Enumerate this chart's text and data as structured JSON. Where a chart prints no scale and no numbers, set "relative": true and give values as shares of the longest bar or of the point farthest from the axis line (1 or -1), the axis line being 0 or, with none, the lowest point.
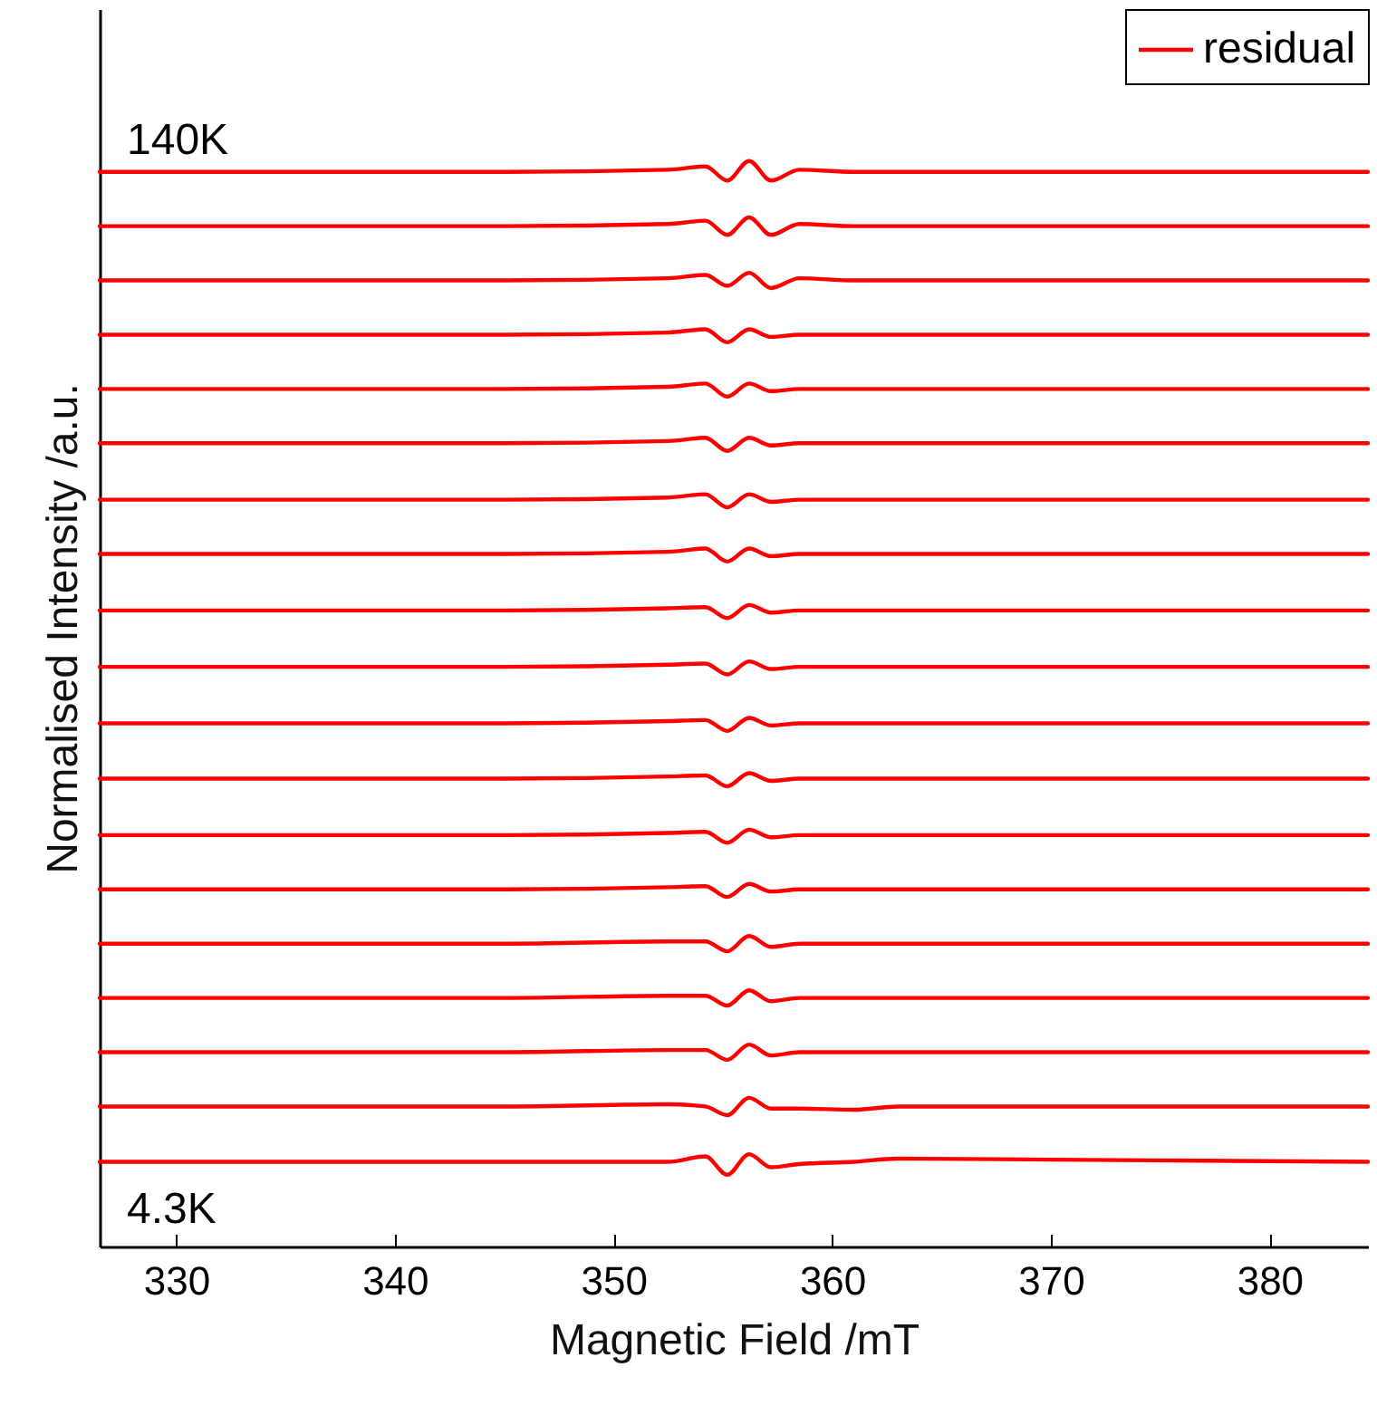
{
  "chart_data": {
    "type": "line",
    "relative": true,
    "xlabel": "Magnetic Field /mT",
    "ylabel": "Normalised Intensity /a.u.",
    "annotations": [
      "140K",
      "4.3K"
    ],
    "legend": "top right",
    "tick_labels": "x",
    "grid": false,
    "marker": "none",
    "line_style": "solid",
    "xlim": [
      326.5,
      384.5
    ],
    "xticks": [
      330,
      340,
      350,
      360,
      370,
      380
    ],
    "x": [
      326.5,
      345,
      352.5,
      354.2,
      355.2,
      356.2,
      357.2,
      358.5,
      361,
      363,
      370,
      384.5
    ],
    "series": [
      {
        "name": "residual",
        "color": "#ff0000",
        "values": [
          0.99,
          0.99,
          0.992,
          0.995,
          0.982,
          1.0,
          0.982,
          0.992,
          0.99,
          0.99,
          0.99,
          0.99
        ]
      },
      {
        "color": "#ff0000",
        "values": [
          0.94,
          0.94,
          0.942,
          0.945,
          0.932,
          0.948,
          0.932,
          0.942,
          0.94,
          0.94,
          0.94,
          0.94
        ]
      },
      {
        "color": "#ff0000",
        "values": [
          0.89,
          0.89,
          0.892,
          0.895,
          0.885,
          0.897,
          0.883,
          0.892,
          0.89,
          0.89,
          0.89,
          0.89
        ]
      },
      {
        "color": "#ff0000",
        "values": [
          0.84,
          0.84,
          0.842,
          0.845,
          0.833,
          0.845,
          0.838,
          0.84,
          0.84,
          0.84,
          0.84,
          0.84
        ]
      },
      {
        "color": "#ff0000",
        "values": [
          0.79,
          0.79,
          0.792,
          0.795,
          0.783,
          0.795,
          0.788,
          0.79,
          0.79,
          0.79,
          0.79,
          0.79
        ]
      },
      {
        "color": "#ff0000",
        "values": [
          0.74,
          0.74,
          0.742,
          0.745,
          0.733,
          0.745,
          0.738,
          0.74,
          0.74,
          0.74,
          0.74,
          0.74
        ]
      },
      {
        "color": "#ff0000",
        "values": [
          0.688,
          0.688,
          0.69,
          0.693,
          0.681,
          0.693,
          0.686,
          0.688,
          0.688,
          0.688,
          0.688,
          0.688
        ]
      },
      {
        "color": "#ff0000",
        "values": [
          0.638,
          0.638,
          0.64,
          0.643,
          0.631,
          0.643,
          0.636,
          0.638,
          0.638,
          0.638,
          0.638,
          0.638
        ]
      },
      {
        "color": "#ff0000",
        "values": [
          0.586,
          0.586,
          0.588,
          0.589,
          0.579,
          0.591,
          0.584,
          0.586,
          0.586,
          0.586,
          0.586,
          0.586
        ]
      },
      {
        "color": "#ff0000",
        "values": [
          0.534,
          0.534,
          0.536,
          0.537,
          0.527,
          0.539,
          0.532,
          0.534,
          0.534,
          0.534,
          0.534,
          0.534
        ]
      },
      {
        "color": "#ff0000",
        "values": [
          0.482,
          0.482,
          0.484,
          0.485,
          0.475,
          0.487,
          0.48,
          0.482,
          0.482,
          0.482,
          0.482,
          0.482
        ]
      },
      {
        "color": "#ff0000",
        "values": [
          0.431,
          0.431,
          0.433,
          0.434,
          0.424,
          0.436,
          0.429,
          0.431,
          0.431,
          0.431,
          0.431,
          0.431
        ]
      },
      {
        "color": "#ff0000",
        "values": [
          0.379,
          0.379,
          0.381,
          0.382,
          0.372,
          0.384,
          0.377,
          0.379,
          0.379,
          0.379,
          0.379,
          0.379
        ]
      },
      {
        "color": "#ff0000",
        "values": [
          0.329,
          0.329,
          0.331,
          0.332,
          0.322,
          0.334,
          0.327,
          0.329,
          0.329,
          0.329,
          0.329,
          0.329
        ]
      },
      {
        "color": "#ff0000",
        "values": [
          0.279,
          0.279,
          0.281,
          0.281,
          0.272,
          0.286,
          0.276,
          0.279,
          0.279,
          0.279,
          0.279,
          0.279
        ]
      },
      {
        "color": "#ff0000",
        "values": [
          0.229,
          0.229,
          0.231,
          0.231,
          0.222,
          0.236,
          0.226,
          0.229,
          0.229,
          0.229,
          0.229,
          0.229
        ]
      },
      {
        "color": "#ff0000",
        "values": [
          0.179,
          0.179,
          0.181,
          0.181,
          0.172,
          0.186,
          0.176,
          0.179,
          0.179,
          0.179,
          0.179,
          0.179
        ]
      },
      {
        "color": "#ff0000",
        "values": [
          0.129,
          0.129,
          0.131,
          0.129,
          0.121,
          0.137,
          0.127,
          0.127,
          0.126,
          0.129,
          0.129,
          0.129
        ]
      },
      {
        "color": "#ff0000",
        "values": [
          0.078,
          0.078,
          0.078,
          0.083,
          0.066,
          0.085,
          0.073,
          0.076,
          0.078,
          0.081,
          0.08,
          0.078
        ]
      }
    ]
  }
}
